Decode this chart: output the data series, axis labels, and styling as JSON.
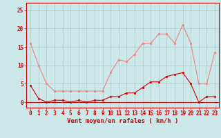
{
  "x": [
    0,
    1,
    2,
    3,
    4,
    5,
    6,
    7,
    8,
    9,
    10,
    11,
    12,
    13,
    14,
    15,
    16,
    17,
    18,
    19,
    20,
    21,
    22,
    23
  ],
  "rafales": [
    16,
    10,
    5,
    3,
    3,
    3,
    3,
    3,
    3,
    3,
    8,
    11.5,
    11,
    13,
    16,
    16,
    18.5,
    18.5,
    16,
    21,
    16,
    5,
    5,
    13.5
  ],
  "moyen": [
    4.5,
    1,
    0,
    0.5,
    0.5,
    0,
    0.5,
    0,
    0.5,
    0.5,
    1.5,
    1.5,
    2.5,
    2.5,
    4,
    5.5,
    5.5,
    7,
    7.5,
    8,
    5,
    0,
    1.5,
    1.5
  ],
  "color_rafales": "#f08080",
  "color_moyen": "#cc0000",
  "bg_color": "#cce8e8",
  "grid_color": "#aacccc",
  "xlabel": "Vent moyen/en rafales ( km/h )",
  "xlabel_color": "#cc0000",
  "xlabel_fontsize": 6.5,
  "yticks": [
    0,
    5,
    10,
    15,
    20,
    25
  ],
  "ylim": [
    -1.5,
    27
  ],
  "xlim": [
    -0.5,
    23.5
  ],
  "tick_color": "#cc0000",
  "tick_fontsize": 5.5,
  "linewidth": 0.8,
  "markersize": 2.0
}
